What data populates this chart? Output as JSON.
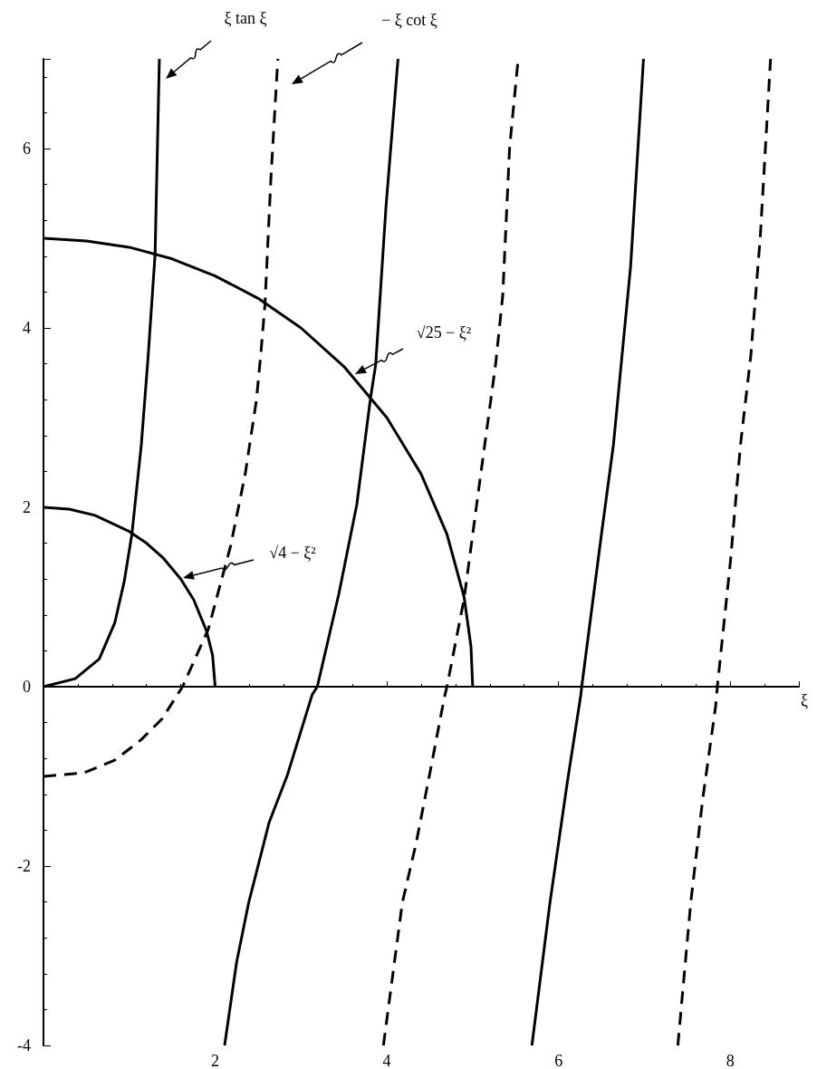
{
  "chart_data": {
    "type": "line",
    "xlabel": "ξ",
    "xlim": [
      0,
      8.8
    ],
    "ylim": [
      -4,
      7
    ],
    "xticks": [
      2,
      4,
      6,
      8
    ],
    "yticks": [
      -4,
      -2,
      0,
      2,
      4,
      6
    ],
    "marker": "none",
    "series": [
      {
        "color": "#000000",
        "line_style": "solid",
        "x": [
          0,
          0.37,
          0.65,
          0.83,
          0.94,
          1.03,
          1.14,
          1.22,
          1.3,
          1.35
        ],
        "values": [
          0,
          0.09,
          0.31,
          0.71,
          1.17,
          1.7,
          2.7,
          3.69,
          4.82,
          7.0
        ]
      },
      {
        "color": "#000000",
        "line_style": "solid",
        "x": [
          2.11,
          2.25,
          2.39,
          2.63,
          2.84,
          3.13,
          3.19,
          3.44,
          3.65,
          3.81,
          3.87,
          3.99,
          4.13
        ],
        "values": [
          -4.0,
          -3.07,
          -2.41,
          -1.51,
          -0.99,
          -0.09,
          0,
          1.03,
          2.03,
          3.22,
          3.59,
          5.35,
          7.0
        ]
      },
      {
        "color": "#000000",
        "line_style": "solid",
        "x": [
          5.69,
          5.9,
          6.1,
          6.26,
          6.27,
          6.5,
          6.64,
          6.84,
          6.99
        ],
        "values": [
          -4.0,
          -2.41,
          -1.08,
          -0.09,
          0,
          1.7,
          2.7,
          4.69,
          7.0
        ]
      },
      {
        "color": "#000000",
        "line_style": "dashed",
        "x": [
          0,
          0.47,
          0.83,
          1.14,
          1.38,
          1.56,
          1.62,
          1.92,
          2.18,
          2.35,
          2.48,
          2.53,
          2.58,
          2.65,
          2.73
        ],
        "values": [
          -1.0,
          -0.96,
          -0.82,
          -0.59,
          -0.36,
          -0.09,
          0,
          0.64,
          1.57,
          2.37,
          3.19,
          3.69,
          4.26,
          5.68,
          7.0
        ]
      },
      {
        "color": "#000000",
        "line_style": "dashed",
        "x": [
          3.96,
          4.18,
          4.34,
          4.51,
          4.67,
          4.7,
          4.9,
          5.07,
          5.21,
          5.27,
          5.35,
          5.43,
          5.53
        ],
        "values": [
          -4.0,
          -2.41,
          -1.75,
          -0.92,
          -0.12,
          0,
          0.98,
          2.2,
          3.19,
          3.62,
          4.36,
          6.01,
          7.0
        ]
      },
      {
        "color": "#000000",
        "line_style": "dashed",
        "x": [
          7.39,
          7.54,
          7.68,
          7.83,
          7.85,
          8.0,
          8.12,
          8.24,
          8.35,
          8.47
        ],
        "values": [
          -4.0,
          -2.41,
          -1.25,
          -0.22,
          0,
          1.37,
          2.7,
          3.69,
          5.01,
          7.0
        ]
      },
      {
        "color": "#000000",
        "line_style": "solid",
        "x": [
          0,
          0.5,
          1.0,
          1.5,
          2.0,
          2.5,
          3.0,
          3.5,
          4.0,
          4.4,
          4.7,
          4.9,
          4.98,
          5.0
        ],
        "values": [
          5.0,
          4.97,
          4.9,
          4.77,
          4.58,
          4.33,
          4.0,
          3.57,
          3.0,
          2.37,
          1.7,
          1.0,
          0.45,
          0
        ]
      },
      {
        "color": "#000000",
        "line_style": "solid",
        "x": [
          0,
          0.3,
          0.6,
          1.0,
          1.2,
          1.4,
          1.6,
          1.75,
          1.9,
          1.97,
          2.0
        ],
        "values": [
          2.0,
          1.98,
          1.91,
          1.73,
          1.6,
          1.43,
          1.2,
          0.97,
          0.62,
          0.35,
          0
        ]
      }
    ],
    "annotations": [
      "ξ tan ξ",
      "− ξ cot ξ",
      "√25 − ξ²",
      "√4 − ξ²"
    ]
  }
}
